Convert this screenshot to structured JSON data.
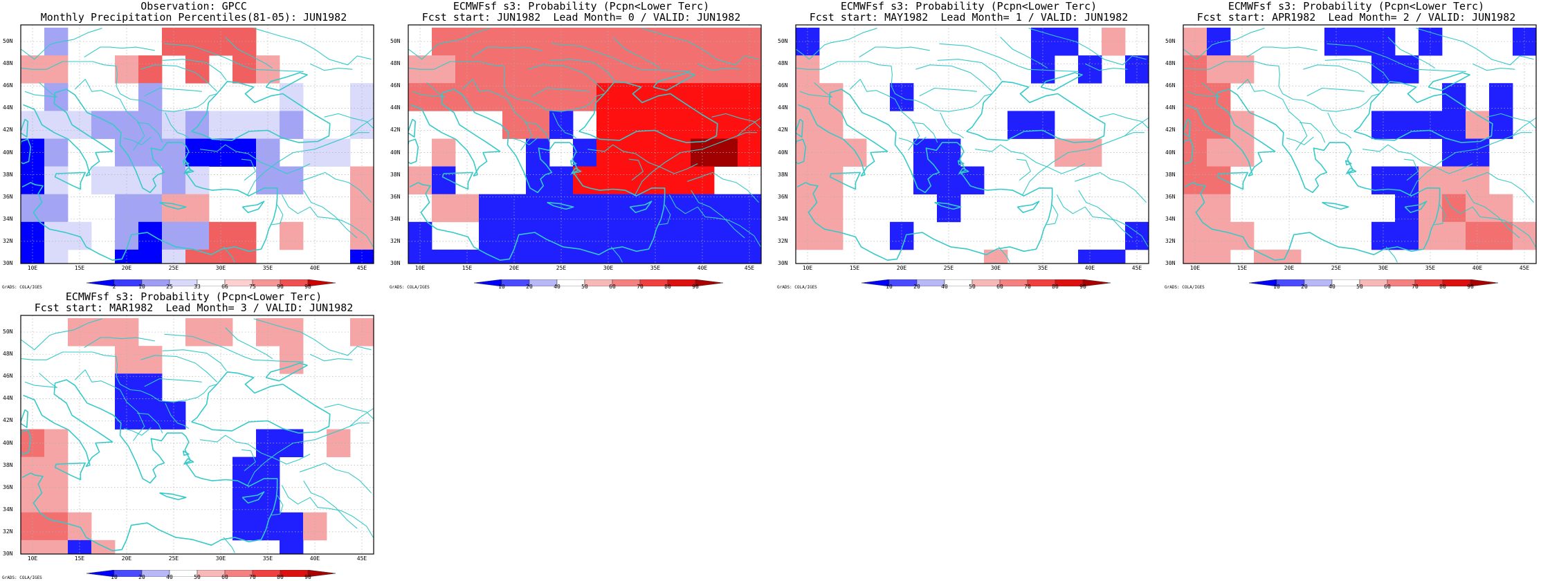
{
  "map_meta": {
    "lon_range": [
      8.75,
      46.25
    ],
    "lat_range": [
      30,
      51.5
    ],
    "grid_step_deg": 2.5,
    "coastline_color": "#35c9c9",
    "lat_ticks": [
      "50N",
      "48N",
      "46N",
      "44N",
      "42N",
      "40N",
      "38N",
      "36N",
      "34N",
      "32N",
      "30N"
    ],
    "lon_ticks": [
      "10E",
      "15E",
      "20E",
      "25E",
      "30E",
      "35E",
      "40E",
      "45E"
    ],
    "credit": "GrADS: COLA/IGES",
    "cell_legend": {
      "0": "white",
      "1": "blue",
      "2": "light blue",
      "3": "very light blue",
      "4": "light red",
      "5": "red",
      "6": "dark red",
      "7": "bright red",
      "8": "darkest red"
    }
  },
  "colorbars": {
    "observation": {
      "labels": [
        "2",
        "10",
        "25",
        "33",
        "66",
        "75",
        "90",
        "98"
      ],
      "colors": [
        "#0000ff",
        "#3b3bff",
        "#9e9ef5",
        "#d9d9fb",
        "#ffffff",
        "#ffd0d0",
        "#f59595",
        "#f05050",
        "#cc0000"
      ]
    },
    "probability": {
      "labels": [
        "10",
        "20",
        "40",
        "50",
        "60",
        "70",
        "80",
        "90"
      ],
      "colors": [
        "#0000ff",
        "#4a4aff",
        "#b8b8f8",
        "#ffffff",
        "#f8b8b8",
        "#f58080",
        "#f04040",
        "#dd1010",
        "#aa0000"
      ]
    }
  },
  "panels": [
    {
      "id": "obs",
      "title_line1": "Observation: GPCC",
      "title_line2": "Monthly Precipitation Percentiles(81-05): JUN1982",
      "colorbar": "observation",
      "grid_rows": [
        "0200005555000000",
        "4400450505400000",
        "0200020000030030",
        "3332223233320033",
        "1200222111203303",
        "1303332300220044",
        "2200224400000044",
        "1330212255040044",
        "1300113555000011",
        "1100110044100011",
        "1111100011101111"
      ]
    },
    {
      "id": "lead0",
      "title_line1": "ECMWFsf s3: Probability (Pcpn<Lower Terc)",
      "title_line2": "Fcst start: JUN1982  Lead Month= 0 / VALID: JUN1982",
      "colorbar": "probability",
      "grid_rows": [
        "0555555555555555",
        "4455555555555555",
        "5555555577777777",
        "0000551077777777",
        "0400010177778877",
        "4100011777777000",
        "0441111111111111",
        "1001111111111111",
        "1111111111111111",
        "1111111111111111",
        "1001111111111111"
      ]
    },
    {
      "id": "lead1",
      "title_line1": "ECMWFsf s3: Probability (Pcpn<Lower Terc)",
      "title_line2": "Fcst start: MAY1982  Lead Month= 1 / VALID: JUN1982",
      "colorbar": "probability",
      "grid_rows": [
        "1000000000110401",
        "4000000000101010",
        "4400100000000001",
        "4400000001100000",
        "4440011000044001",
        "4400011100000001",
        "4400001000000001",
        "4400100000000010",
        "0000000040001100",
        "4000000000001100",
        "0000000000001144"
      ]
    },
    {
      "id": "lead2",
      "title_line1": "ECMWFsf s3: Probability (Pcpn<Lower Terc)",
      "title_line2": "Fcst start: APR1982  Lead Month= 2 / VALID: JUN1982",
      "colorbar": "probability",
      "grid_rows": [
        "4100001110100011",
        "5440000011000000",
        "5500000000010104",
        "5540000011114100",
        "5440000000011001",
        "5500000011444000",
        "4400000001454400",
        "4440000011445544",
        "4404400000000000",
        "4400000000001004",
        "0000445411140000"
      ]
    },
    {
      "id": "lead3",
      "title_line1": "ECMWFsf s3: Probability (Pcpn<Lower Terc)",
      "title_line2": "Fcst start: MAR1982  Lead Month= 3 / VALID: JUN1982",
      "colorbar": "probability",
      "grid_rows": [
        "0044400440440044",
        "0000440000040004",
        "0000110000000004",
        "0000111000000000",
        "5400000000110400",
        "4400000001100000",
        "4400000001100000",
        "5540000001114000",
        "4414000000010000",
        "4400400000004000",
        "4000000000000001"
      ]
    }
  ]
}
